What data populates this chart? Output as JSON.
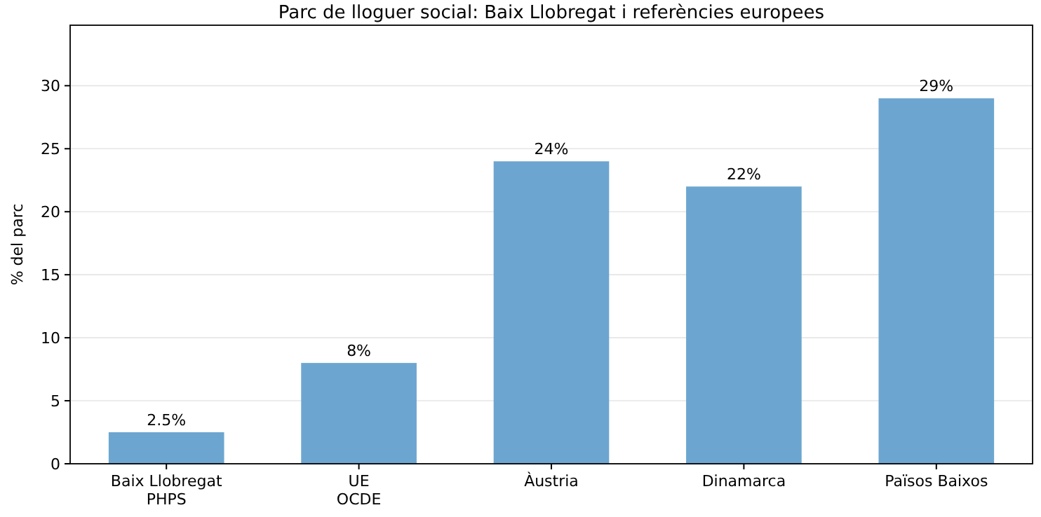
{
  "chart_data": {
    "type": "bar",
    "title": "Parc de lloguer social: Baix Llobregat i referències europees",
    "ylabel": "% del parc",
    "categories": [
      "Baix Llobregat\nPHPS",
      "UE\nOCDE",
      "Àustria",
      "Dinamarca",
      "Països Baixos"
    ],
    "values": [
      2.5,
      8,
      24,
      22,
      29
    ],
    "color": "#6ca6d0",
    "value_labels": [
      "2.5%",
      "8%",
      "24%",
      "22%",
      "29%"
    ],
    "ylim": [
      0,
      34.8
    ],
    "yticks": [
      0,
      5,
      10,
      15,
      20,
      25,
      30
    ],
    "grid": "y"
  }
}
